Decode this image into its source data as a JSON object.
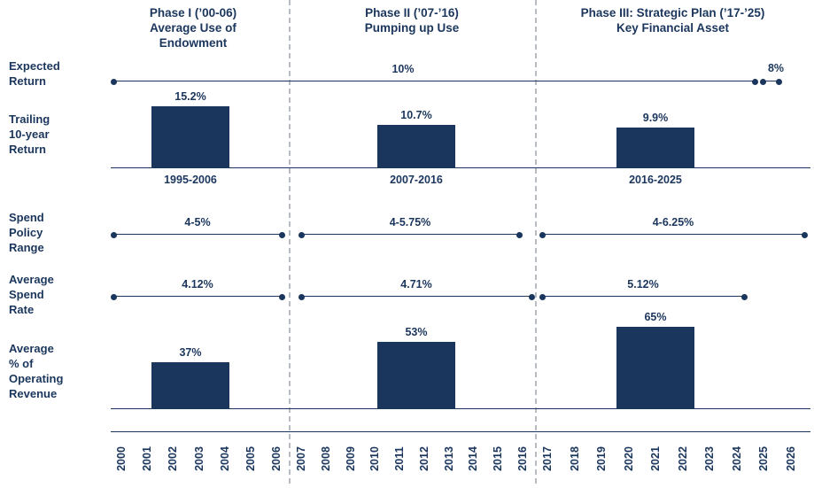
{
  "colors": {
    "navy": "#1b365d",
    "dash": "#b7bcc3",
    "background": "#ffffff"
  },
  "phase_headers": [
    {
      "text": "Phase I (’00-06)\nAverage Use of\nEndowment"
    },
    {
      "text": "Phase II (’07-’16)\nPumping up Use"
    },
    {
      "text": "Phase III: Strategic Plan (’17-’25)\nKey Financial Asset"
    }
  ],
  "row_labels": [
    {
      "text": "Expected\nReturn"
    },
    {
      "text": "Trailing\n10-year\nReturn"
    },
    {
      "text": "Spend\nPolicy\nRange"
    },
    {
      "text": "Average\nSpend\nRate"
    },
    {
      "text": "Average\n% of\nOperating\nRevenue"
    }
  ],
  "chart_data": [
    {
      "type": "line",
      "row": "Expected Return",
      "segments": [
        {
          "label": "10%",
          "value": 10,
          "from_year": 2000,
          "to_year": 2025
        },
        {
          "label": "8%",
          "value": 8,
          "from_year": 2025,
          "to_year": 2026
        }
      ]
    },
    {
      "type": "bar",
      "row": "Trailing 10-year Return",
      "categories": [
        "1995-2006",
        "2007-2016",
        "2016-2025"
      ],
      "values": [
        15.2,
        10.7,
        9.9
      ],
      "value_labels": [
        "15.2%",
        "10.7%",
        "9.9%"
      ]
    },
    {
      "type": "range",
      "row": "Spend Policy Range",
      "categories": [
        "Phase I",
        "Phase II",
        "Phase III"
      ],
      "labels": [
        "4-5%",
        "4-5.75%",
        "4-6.25%"
      ],
      "ranges": [
        [
          4,
          5
        ],
        [
          4,
          5.75
        ],
        [
          4,
          6.25
        ]
      ]
    },
    {
      "type": "range",
      "row": "Average Spend Rate",
      "categories": [
        "Phase I",
        "Phase II",
        "Phase III"
      ],
      "labels": [
        "4.12%",
        "4.71%",
        "5.12%"
      ],
      "values": [
        4.12,
        4.71,
        5.12
      ]
    },
    {
      "type": "bar",
      "row": "Average % of Operating Revenue",
      "categories": [
        "Phase I",
        "Phase II",
        "Phase III"
      ],
      "values": [
        37,
        53,
        65
      ],
      "value_labels": [
        "37%",
        "53%",
        "65%"
      ]
    }
  ],
  "x_axis": {
    "years": [
      "2000",
      "2001",
      "2002",
      "2003",
      "2004",
      "2005",
      "2006",
      "2007",
      "2008",
      "2009",
      "2010",
      "2011",
      "2012",
      "2013",
      "2014",
      "2015",
      "2016",
      "2017",
      "2018",
      "2019",
      "2020",
      "2021",
      "2022",
      "2023",
      "2024",
      "2025",
      "2026"
    ]
  }
}
